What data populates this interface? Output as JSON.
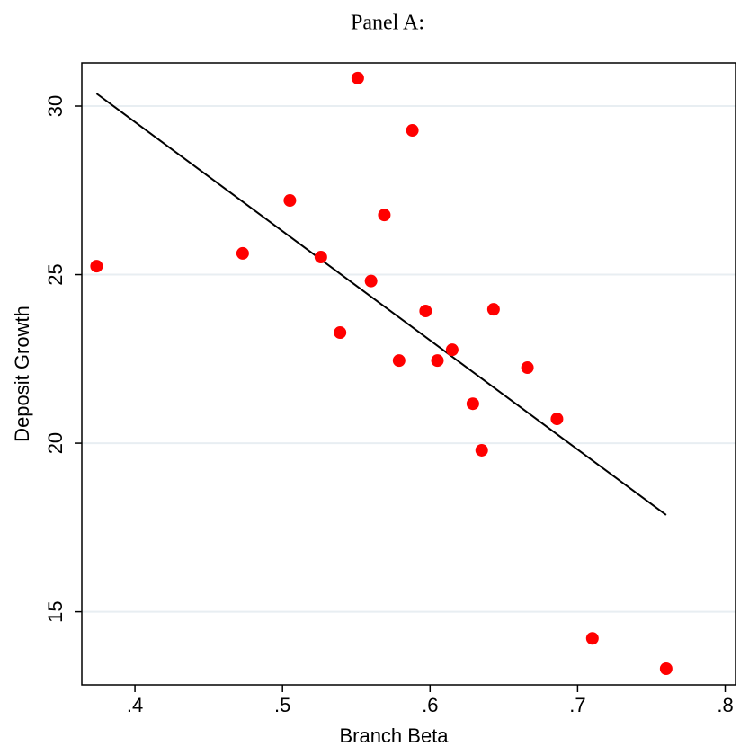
{
  "chart_data": {
    "type": "scatter",
    "title": "Panel A:",
    "x_label": "Branch Beta",
    "y_label": "Deposit Growth",
    "xlim": [
      0.364,
      0.807
    ],
    "ylim": [
      12.83,
      31.28
    ],
    "xticks": [
      {
        "value": 0.4,
        "label": ".4"
      },
      {
        "value": 0.5,
        "label": ".5"
      },
      {
        "value": 0.6,
        "label": ".6"
      },
      {
        "value": 0.7,
        "label": ".7"
      },
      {
        "value": 0.8,
        "label": ".8"
      }
    ],
    "yticks": [
      15,
      20,
      25,
      30
    ],
    "grid": true,
    "series": [
      {
        "color": "#ff0000",
        "x": [
          0.374,
          0.473,
          0.505,
          0.526,
          0.551,
          0.539,
          0.56,
          0.569,
          0.579,
          0.588,
          0.597,
          0.605,
          0.615,
          0.629,
          0.635,
          0.643,
          0.666,
          0.686,
          0.71,
          0.76
        ],
        "values": [
          25.25,
          25.63,
          27.2,
          25.52,
          30.83,
          23.28,
          24.81,
          26.77,
          22.45,
          29.28,
          23.92,
          22.45,
          22.77,
          21.17,
          19.79,
          23.97,
          22.24,
          20.72,
          14.21,
          13.31
        ]
      }
    ],
    "fit_line": {
      "color": "#000000",
      "x": [
        0.374,
        0.76
      ],
      "values": [
        30.37,
        17.87
      ]
    }
  }
}
